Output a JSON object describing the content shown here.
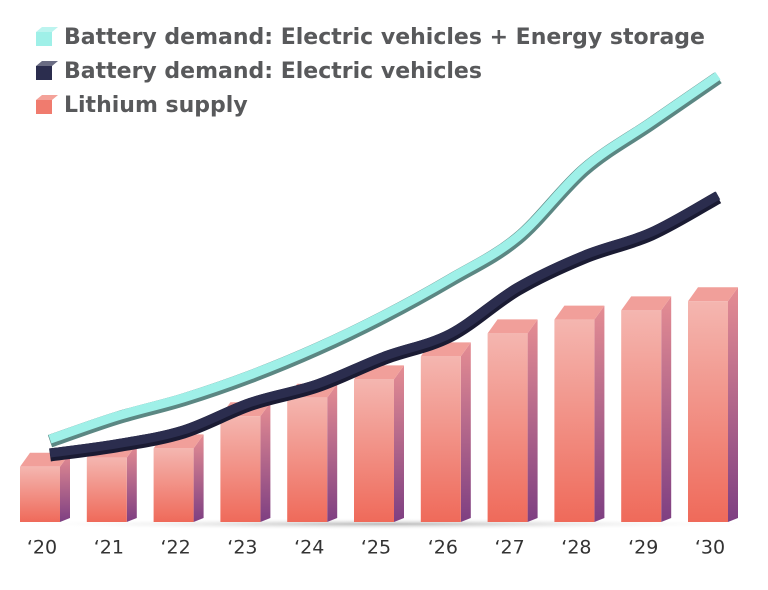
{
  "chart_data": {
    "type": "bar-line",
    "categories": [
      "‘20",
      "‘21",
      "‘22",
      "‘23",
      "‘24",
      "‘25",
      "‘26",
      "‘27",
      "‘28",
      "‘29",
      "‘30"
    ],
    "ylim": [
      0,
      100
    ],
    "series": [
      {
        "name": "Battery demand: Electric vehicles + Energy storage",
        "type": "line",
        "color": "#9ff0e8",
        "values": [
          18,
          23,
          27,
          32,
          38,
          45,
          53,
          62,
          77,
          87,
          97
        ]
      },
      {
        "name": "Battery demand: Electric vehicles",
        "type": "line",
        "color": "#2b2d4e",
        "values": [
          15,
          17,
          20,
          26,
          30,
          36,
          41,
          51,
          58,
          63,
          71
        ]
      },
      {
        "name": "Lithium supply",
        "type": "bar",
        "color": "#f07b6e",
        "values": [
          12,
          14,
          16,
          23,
          27,
          31,
          36,
          41,
          44,
          46,
          48
        ]
      }
    ]
  }
}
